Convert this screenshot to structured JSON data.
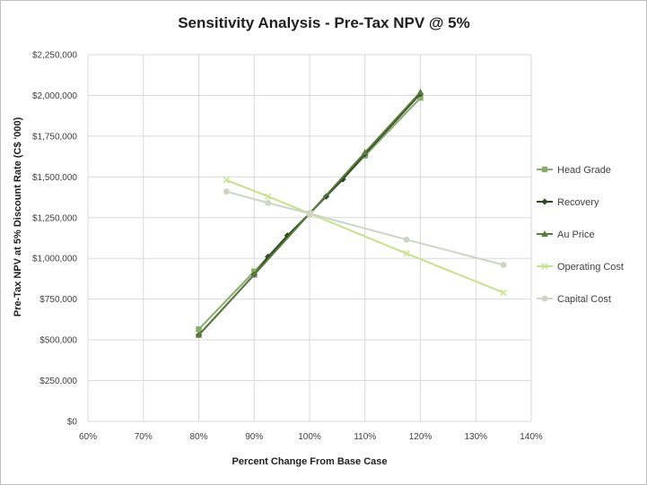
{
  "chart_data": {
    "type": "line",
    "title": "Sensitivity Analysis - Pre-Tax NPV @ 5%",
    "xlabel": "Percent Change  From Base Case",
    "ylabel": "Pre-Tax NPV at 5% Discount Rate (C$ '000)",
    "xlim": [
      60,
      140
    ],
    "ylim": [
      0,
      2250000
    ],
    "x_ticks": [
      60,
      70,
      80,
      90,
      100,
      110,
      120,
      130,
      140
    ],
    "x_tick_labels": [
      "60%",
      "70%",
      "80%",
      "90%",
      "100%",
      "110%",
      "120%",
      "130%",
      "140%"
    ],
    "y_ticks": [
      0,
      250000,
      500000,
      750000,
      1000000,
      1250000,
      1500000,
      1750000,
      2000000,
      2250000
    ],
    "y_tick_labels": [
      "$0",
      "$250,000",
      "$500,000",
      "$750,000",
      "$1,000,000",
      "$1,250,000",
      "$1,500,000",
      "$1,750,000",
      "$2,000,000",
      "$2,250,000"
    ],
    "grid": true,
    "legend_position": "right",
    "series": [
      {
        "name": "Head Grade",
        "color": "#8aab6c",
        "marker": "square",
        "x": [
          80,
          90,
          100,
          110,
          120
        ],
        "y": [
          565000,
          920000,
          1275000,
          1630000,
          1985000
        ]
      },
      {
        "name": "Recovery",
        "color": "#2f4a23",
        "marker": "diamond",
        "x": [
          80,
          90,
          92.5,
          96,
          100,
          103,
          106,
          110,
          120
        ],
        "y": [
          530000,
          900000,
          1010000,
          1140000,
          1275000,
          1380000,
          1485000,
          1640000,
          2010000
        ]
      },
      {
        "name": "Au Price",
        "color": "#5b7a3e",
        "marker": "triangle",
        "x": [
          80,
          90,
          100,
          110,
          120
        ],
        "y": [
          530000,
          900000,
          1275000,
          1650000,
          2020000
        ]
      },
      {
        "name": "Operating Cost",
        "color": "#c8e08a",
        "marker": "x",
        "x": [
          85,
          92.5,
          100,
          117.5,
          135
        ],
        "y": [
          1480000,
          1380000,
          1275000,
          1030000,
          790000
        ]
      },
      {
        "name": "Capital Cost",
        "color": "#cdd4c4",
        "marker": "circle",
        "x": [
          85,
          92.5,
          100,
          117.5,
          135
        ],
        "y": [
          1410000,
          1340000,
          1275000,
          1115000,
          960000
        ]
      }
    ]
  }
}
